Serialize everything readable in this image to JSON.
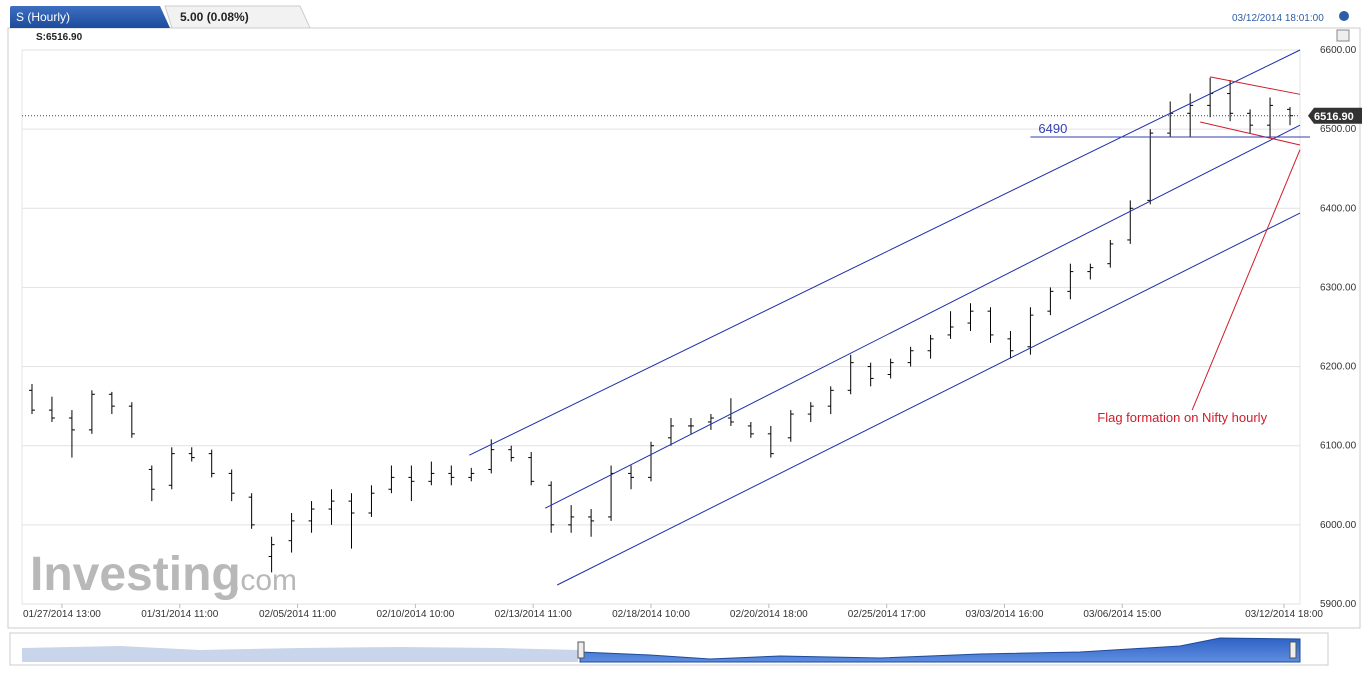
{
  "chart_data": {
    "type": "ohlc",
    "header": {
      "symbol": "S (Hourly)",
      "change": "5.00 (0.08%)",
      "timestamp": "03/12/2014 18:01:00",
      "legend_text": "S:6516.90"
    },
    "watermark": {
      "main": "Investing",
      "suffix": ".com"
    },
    "ylim": [
      5900,
      6600
    ],
    "yticks": [
      {
        "value": 5900,
        "label": "5900.00"
      },
      {
        "value": 6000,
        "label": "6000.00"
      },
      {
        "value": 6100,
        "label": "6100.00"
      },
      {
        "value": 6200,
        "label": "6200.00"
      },
      {
        "value": 6300,
        "label": "6300.00"
      },
      {
        "value": 6400,
        "label": "6400.00"
      },
      {
        "value": 6500,
        "label": "6500.00"
      },
      {
        "value": 6600,
        "label": "6600.00"
      }
    ],
    "xlim": [
      -0.5,
      63.5
    ],
    "xticks": [
      {
        "value": 1.5,
        "label": "01/27/2014 13:00"
      },
      {
        "value": 7.4,
        "label": "01/31/2014 11:00"
      },
      {
        "value": 13.3,
        "label": "02/05/2014 11:00"
      },
      {
        "value": 19.2,
        "label": "02/10/2014 10:00"
      },
      {
        "value": 25.1,
        "label": "02/13/2014 11:00"
      },
      {
        "value": 31,
        "label": "02/18/2014 10:00"
      },
      {
        "value": 36.9,
        "label": "02/20/2014 18:00"
      },
      {
        "value": 42.8,
        "label": "02/25/2014 17:00"
      },
      {
        "value": 48.7,
        "label": "03/03/2014 16:00"
      },
      {
        "value": 54.6,
        "label": "03/06/2014 15:00"
      },
      {
        "value": 62.7,
        "label": "03/12/2014 18:00"
      }
    ],
    "grid": true,
    "color": "#000000",
    "open": [
      6170,
      6145,
      6135,
      6120,
      6165,
      6150,
      6070,
      6050,
      6090,
      6090,
      6065,
      6035,
      5960,
      5980,
      6005,
      6020,
      6030,
      6015,
      6045,
      6060,
      6055,
      6065,
      6060,
      6070,
      6095,
      6085,
      6050,
      6000,
      6010,
      6010,
      6065,
      6060,
      6110,
      6125,
      6130,
      6135,
      6125,
      6115,
      6110,
      6140,
      6150,
      6170,
      6200,
      6190,
      6205,
      6220,
      6240,
      6255,
      6270,
      6235,
      6225,
      6270,
      6295,
      6320,
      6330,
      6360,
      6410,
      6495,
      6520,
      6530,
      6545,
      6520,
      6505,
      6525
    ],
    "high": [
      6178,
      6162,
      6145,
      6170,
      6168,
      6155,
      6075,
      6098,
      6098,
      6095,
      6070,
      6040,
      5985,
      6015,
      6030,
      6045,
      6040,
      6050,
      6075,
      6075,
      6080,
      6075,
      6072,
      6108,
      6100,
      6092,
      6055,
      6025,
      6020,
      6075,
      6075,
      6105,
      6135,
      6135,
      6140,
      6160,
      6130,
      6125,
      6145,
      6155,
      6175,
      6215,
      6205,
      6210,
      6225,
      6240,
      6270,
      6280,
      6275,
      6245,
      6275,
      6300,
      6330,
      6330,
      6360,
      6410,
      6500,
      6535,
      6545,
      6565,
      6562,
      6525,
      6540,
      6528
    ],
    "low": [
      6140,
      6130,
      6085,
      6115,
      6140,
      6110,
      6030,
      6045,
      6080,
      6060,
      6030,
      5995,
      5940,
      5965,
      5990,
      6000,
      5970,
      6010,
      6040,
      6030,
      6050,
      6050,
      6055,
      6065,
      6080,
      6050,
      5990,
      5990,
      5985,
      6005,
      6045,
      6055,
      6100,
      6115,
      6120,
      6125,
      6110,
      6085,
      6105,
      6130,
      6140,
      6165,
      6175,
      6185,
      6200,
      6210,
      6235,
      6245,
      6230,
      6210,
      6215,
      6265,
      6285,
      6310,
      6325,
      6355,
      6405,
      6490,
      6490,
      6515,
      6510,
      6495,
      6490,
      6505
    ],
    "close": [
      6145,
      6135,
      6120,
      6165,
      6150,
      6115,
      6045,
      6090,
      6085,
      6065,
      6040,
      6000,
      5975,
      6005,
      6020,
      6030,
      6015,
      6040,
      6060,
      6055,
      6065,
      6060,
      6065,
      6095,
      6085,
      6055,
      6000,
      6010,
      6005,
      6065,
      6060,
      6100,
      6125,
      6125,
      6135,
      6130,
      6115,
      6090,
      6140,
      6150,
      6170,
      6205,
      6185,
      6205,
      6220,
      6235,
      6250,
      6270,
      6240,
      6220,
      6265,
      6295,
      6320,
      6325,
      6355,
      6400,
      6495,
      6520,
      6530,
      6545,
      6520,
      6505,
      6530,
      6517
    ],
    "last_price": {
      "value": 6516.9,
      "label": "6516.90"
    },
    "trend_lines": [
      {
        "x": [
          21.9,
          63.5
        ],
        "y": [
          6088,
          6600
        ],
        "color": "#1f2fa8"
      },
      {
        "x": [
          25.7,
          63.5
        ],
        "y": [
          6021,
          6505
        ],
        "color": "#1f2fa8"
      },
      {
        "x": [
          26.3,
          63.5
        ],
        "y": [
          5924,
          6394
        ],
        "color": "#1f2fa8"
      },
      {
        "x": [
          59.0,
          63.5
        ],
        "y": [
          6566,
          6544
        ],
        "color": "#d01c2a"
      },
      {
        "x": [
          58.5,
          63.5
        ],
        "y": [
          6509,
          6480
        ],
        "color": "#d01c2a"
      },
      {
        "x": [
          58.1,
          63.5
        ],
        "y": [
          6145,
          6474
        ],
        "color": "#d01c2a"
      }
    ],
    "level": {
      "value": 6490,
      "label": "6490",
      "x": [
        50,
        64
      ],
      "color": "#3340b0"
    },
    "annotation": {
      "text": "Flag formation on Nifty hourly",
      "x": 57.6,
      "y": 6130,
      "color": "#d01c2a"
    }
  }
}
